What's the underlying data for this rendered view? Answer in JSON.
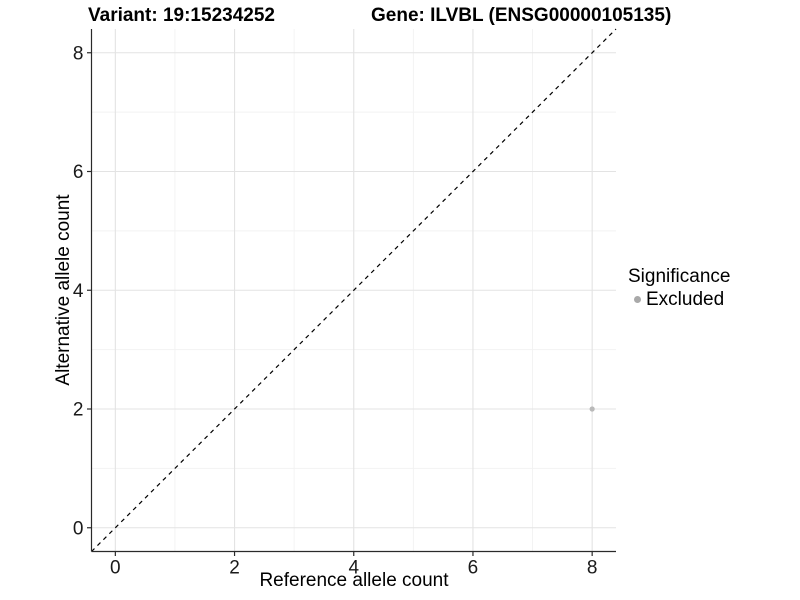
{
  "titles": {
    "left": "Variant: 19:15234252",
    "right": "Gene: ILVBL (ENSG00000105135)"
  },
  "chart_data": {
    "type": "scatter",
    "title": "Variant: 19:15234252   Gene: ILVBL (ENSG00000105135)",
    "xlabel": "Reference allele count",
    "ylabel": "Alternative allele count",
    "xlim": [
      -0.4,
      8.4
    ],
    "ylim": [
      -0.4,
      8.4
    ],
    "xticks": [
      0,
      2,
      4,
      6,
      8
    ],
    "yticks": [
      0,
      2,
      4,
      6,
      8
    ],
    "minor_xticks": [
      1,
      3,
      5,
      7
    ],
    "minor_yticks": [
      1,
      3,
      5,
      7
    ],
    "grid": true,
    "identity_line": {
      "type": "abline",
      "slope": 1,
      "intercept": 0,
      "style": "dashed",
      "color": "#000000"
    },
    "series": [
      {
        "name": "Excluded",
        "color": "#b9b9b9",
        "points": [
          {
            "x": 8,
            "y": 2
          }
        ]
      }
    ],
    "legend": {
      "title": "Significance",
      "position": "right",
      "items": [
        {
          "label": "Excluded",
          "color": "#a9a9a9"
        }
      ]
    },
    "colors": {
      "major_grid": "#e3e3e3",
      "minor_grid": "#f2f2f2",
      "axis_line": "#2a2a2a",
      "tick_label": "#1a1a1a"
    }
  }
}
